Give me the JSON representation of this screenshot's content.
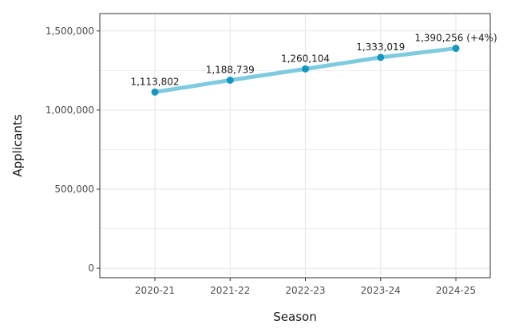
{
  "chart_data": {
    "type": "line",
    "categories": [
      "2020-21",
      "2021-22",
      "2022-23",
      "2023-24",
      "2024-25"
    ],
    "values": [
      1113802,
      1188739,
      1260104,
      1333019,
      1390256
    ],
    "data_labels": [
      "1,113,802",
      "1,188,739",
      "1,260,104",
      "1,333,019",
      "1,390,256 (+4%)"
    ],
    "xlabel": "Season",
    "ylabel": "Applicants",
    "ylim": [
      -60000,
      1610000
    ],
    "yticks": [
      0,
      500000,
      1000000,
      1500000
    ],
    "ytick_labels": [
      "0",
      "500,000",
      "1,000,000",
      "1,500,000"
    ],
    "grid": true,
    "legend": "none"
  },
  "colors": {
    "line": "#7ecbe0",
    "point": "#1597c2",
    "grid": "#e6e6e6",
    "frame": "#333333",
    "background": "#ffffff"
  }
}
